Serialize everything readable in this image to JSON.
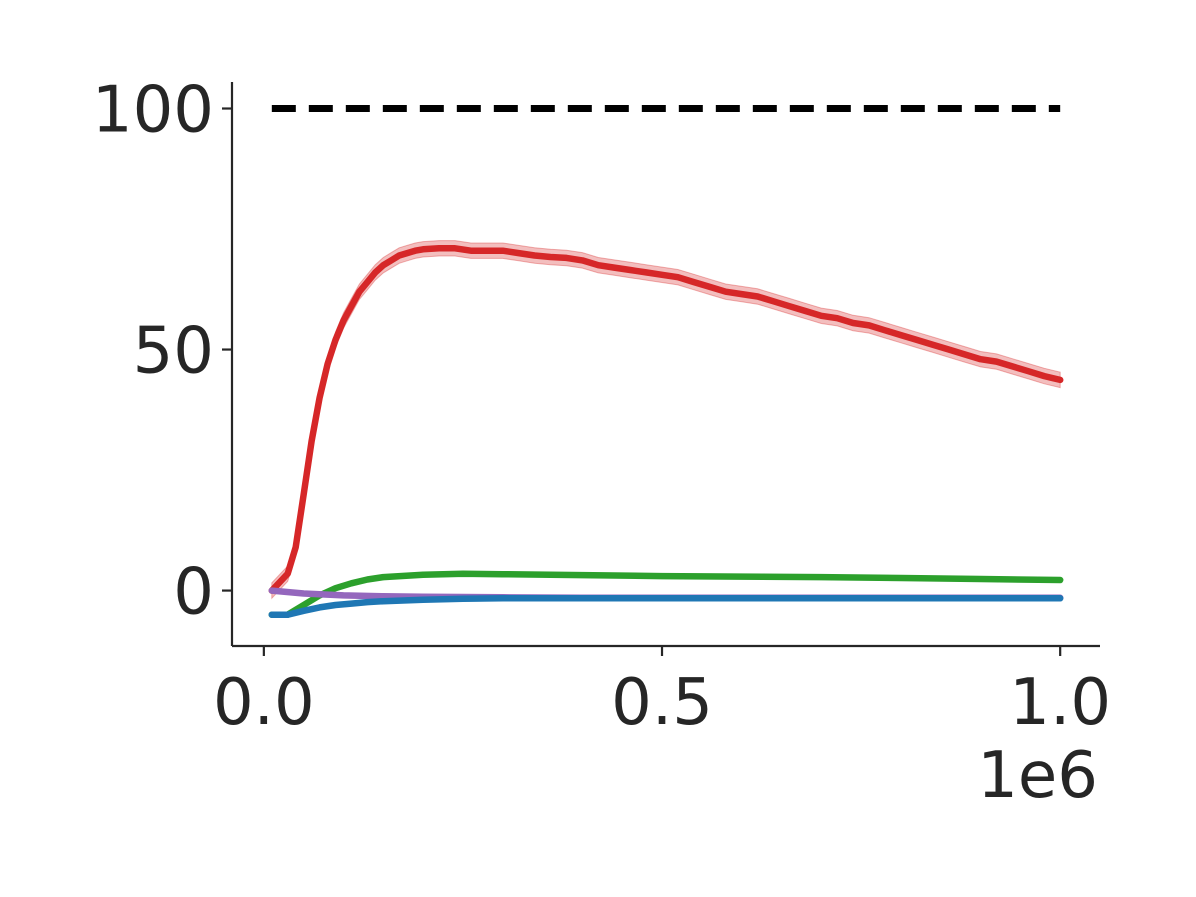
{
  "chart_data": {
    "type": "line",
    "title": "",
    "xlabel": "",
    "ylabel": "",
    "x_offset_label": "1e6",
    "xlim": [
      -0.04,
      1.05
    ],
    "ylim": [
      -11.5,
      105.5
    ],
    "grid": false,
    "legend": "none",
    "x_ticks": [
      {
        "value": 0.0,
        "label": "0.0"
      },
      {
        "value": 0.5,
        "label": "0.5"
      },
      {
        "value": 1.0,
        "label": "1.0"
      }
    ],
    "y_ticks": [
      {
        "value": 0,
        "label": "0"
      },
      {
        "value": 50,
        "label": "50"
      },
      {
        "value": 100,
        "label": "100"
      }
    ],
    "reference_line": {
      "y": 100,
      "color": "#000000",
      "style": "dashed"
    },
    "series": [
      {
        "color": "#d62728",
        "band": 1.6,
        "x": [
          0.01,
          0.03,
          0.04,
          0.05,
          0.06,
          0.07,
          0.08,
          0.09,
          0.1,
          0.11,
          0.12,
          0.13,
          0.14,
          0.15,
          0.16,
          0.17,
          0.18,
          0.19,
          0.2,
          0.22,
          0.24,
          0.26,
          0.28,
          0.3,
          0.32,
          0.34,
          0.36,
          0.38,
          0.4,
          0.42,
          0.44,
          0.46,
          0.48,
          0.5,
          0.52,
          0.54,
          0.56,
          0.58,
          0.6,
          0.62,
          0.64,
          0.66,
          0.68,
          0.7,
          0.72,
          0.74,
          0.76,
          0.78,
          0.8,
          0.82,
          0.84,
          0.86,
          0.88,
          0.9,
          0.92,
          0.94,
          0.96,
          0.98,
          1.0
        ],
        "values": [
          0,
          3.5,
          9,
          20,
          31,
          40,
          47,
          52,
          56,
          59,
          62,
          64,
          66,
          67.5,
          68.5,
          69.5,
          70,
          70.5,
          70.8,
          71,
          71,
          70.5,
          70.5,
          70.5,
          70,
          69.5,
          69.2,
          69,
          68.5,
          67.5,
          67,
          66.5,
          66,
          65.5,
          65,
          64,
          63,
          62,
          61.5,
          61,
          60,
          59,
          58,
          57,
          56.5,
          55.5,
          55,
          54,
          53,
          52,
          51,
          50,
          49,
          48,
          47.5,
          46.5,
          45.5,
          44.5,
          43.7
        ]
      },
      {
        "color": "#2ca02c",
        "band": 0.3,
        "x": [
          0.01,
          0.03,
          0.05,
          0.07,
          0.09,
          0.11,
          0.13,
          0.15,
          0.2,
          0.25,
          0.3,
          0.4,
          0.5,
          0.6,
          0.7,
          0.8,
          0.9,
          1.0
        ],
        "values": [
          -5,
          -5,
          -3,
          -1,
          0.5,
          1.5,
          2.3,
          2.8,
          3.3,
          3.5,
          3.4,
          3.2,
          3.0,
          2.9,
          2.8,
          2.6,
          2.4,
          2.2
        ]
      },
      {
        "color": "#9467bd",
        "band": 0.2,
        "x": [
          0.01,
          0.05,
          0.1,
          0.15,
          0.2,
          0.3,
          0.4,
          0.5,
          0.6,
          0.7,
          0.8,
          0.9,
          1.0
        ],
        "values": [
          0,
          -0.6,
          -1,
          -1.2,
          -1.3,
          -1.4,
          -1.5,
          -1.5,
          -1.5,
          -1.5,
          -1.5,
          -1.5,
          -1.5
        ]
      },
      {
        "color": "#1f77b4",
        "band": 0.5,
        "x": [
          0.01,
          0.03,
          0.05,
          0.07,
          0.09,
          0.11,
          0.13,
          0.15,
          0.2,
          0.25,
          0.3,
          0.4,
          0.5,
          0.6,
          0.7,
          0.8,
          0.9,
          1.0
        ],
        "values": [
          -5,
          -5,
          -4.2,
          -3.5,
          -3,
          -2.7,
          -2.4,
          -2.2,
          -1.9,
          -1.7,
          -1.6,
          -1.6,
          -1.6,
          -1.6,
          -1.6,
          -1.6,
          -1.6,
          -1.6
        ]
      }
    ]
  }
}
